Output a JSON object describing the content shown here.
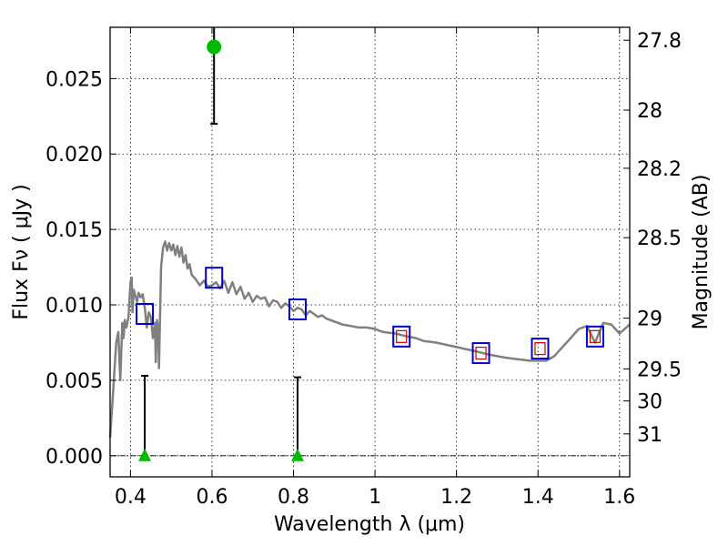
{
  "chart_data": {
    "type": "scatter",
    "xlabel": "Wavelength  λ (μm)",
    "ylabel": "Flux  Fν  ( μJy )",
    "y2label": "Magnitude (AB)",
    "xlim": [
      0.35,
      1.625
    ],
    "ylim": [
      -0.0014,
      0.0284
    ],
    "grid": true,
    "x_ticks": [
      {
        "value": 0.4,
        "label": "0.4"
      },
      {
        "value": 0.6,
        "label": "0.6"
      },
      {
        "value": 0.8,
        "label": "0.8"
      },
      {
        "value": 1.0,
        "label": "1"
      },
      {
        "value": 1.2,
        "label": "1.2"
      },
      {
        "value": 1.4,
        "label": "1.4"
      },
      {
        "value": 1.6,
        "label": "1.6"
      }
    ],
    "y_ticks": [
      {
        "value": 0.0,
        "label": "0.000"
      },
      {
        "value": 0.005,
        "label": "0.005"
      },
      {
        "value": 0.01,
        "label": "0.010"
      },
      {
        "value": 0.015,
        "label": "0.015"
      },
      {
        "value": 0.02,
        "label": "0.020"
      },
      {
        "value": 0.025,
        "label": "0.025"
      }
    ],
    "y2_ticks": [
      {
        "mag": 27.8,
        "label": "27.8"
      },
      {
        "mag": 28.0,
        "label": "28"
      },
      {
        "mag": 28.2,
        "label": "28.2"
      },
      {
        "mag": 28.5,
        "label": "28.5"
      },
      {
        "mag": 29.0,
        "label": "29"
      },
      {
        "mag": 29.5,
        "label": "29.5"
      },
      {
        "mag": 30.0,
        "label": "30"
      },
      {
        "mag": 31.0,
        "label": "31"
      }
    ],
    "series": [
      {
        "kind": "model_spectrum",
        "color": "#808080",
        "x": [
          0.35,
          0.358,
          0.365,
          0.37,
          0.375,
          0.38,
          0.383,
          0.386,
          0.39,
          0.395,
          0.4,
          0.403,
          0.405,
          0.408,
          0.41,
          0.413,
          0.416,
          0.42,
          0.425,
          0.43,
          0.435,
          0.44,
          0.445,
          0.45,
          0.455,
          0.46,
          0.462,
          0.465,
          0.468,
          0.47,
          0.475,
          0.48,
          0.485,
          0.49,
          0.495,
          0.5,
          0.505,
          0.51,
          0.515,
          0.52,
          0.525,
          0.53,
          0.535,
          0.54,
          0.545,
          0.55,
          0.56,
          0.57,
          0.58,
          0.59,
          0.6,
          0.61,
          0.62,
          0.63,
          0.64,
          0.65,
          0.66,
          0.67,
          0.68,
          0.69,
          0.7,
          0.71,
          0.72,
          0.73,
          0.74,
          0.75,
          0.76,
          0.77,
          0.78,
          0.79,
          0.8,
          0.81,
          0.82,
          0.83,
          0.84,
          0.85,
          0.86,
          0.87,
          0.88,
          0.9,
          0.92,
          0.94,
          0.96,
          0.98,
          1.0,
          1.02,
          1.05,
          1.08,
          1.1,
          1.12,
          1.15,
          1.2,
          1.25,
          1.28,
          1.3,
          1.32,
          1.35,
          1.38,
          1.4,
          1.42,
          1.44,
          1.46,
          1.48,
          1.5,
          1.52,
          1.54,
          1.56,
          1.58,
          1.6,
          1.625
        ],
        "y": [
          0.0012,
          0.0045,
          0.0075,
          0.0082,
          0.005,
          0.0088,
          0.0078,
          0.009,
          0.0085,
          0.0092,
          0.0115,
          0.0118,
          0.0095,
          0.011,
          0.0108,
          0.0105,
          0.0102,
          0.0108,
          0.0105,
          0.0107,
          0.0098,
          0.0085,
          0.0095,
          0.0092,
          0.0078,
          0.0088,
          0.0062,
          0.009,
          0.0085,
          0.0058,
          0.0125,
          0.0138,
          0.0142,
          0.0136,
          0.0141,
          0.0136,
          0.014,
          0.0133,
          0.0139,
          0.0132,
          0.0138,
          0.0128,
          0.0133,
          0.0124,
          0.0127,
          0.012,
          0.0117,
          0.0113,
          0.0116,
          0.0112,
          0.0113,
          0.0115,
          0.0111,
          0.0116,
          0.0108,
          0.0115,
          0.0107,
          0.0112,
          0.0104,
          0.0108,
          0.0102,
          0.0106,
          0.0104,
          0.0105,
          0.0099,
          0.0103,
          0.0102,
          0.0098,
          0.0101,
          0.0099,
          0.0096,
          0.0098,
          0.0097,
          0.0093,
          0.0096,
          0.0094,
          0.0092,
          0.0093,
          0.0091,
          0.0089,
          0.0087,
          0.0086,
          0.0085,
          0.0085,
          0.0084,
          0.0082,
          0.0081,
          0.0079,
          0.0078,
          0.0076,
          0.0075,
          0.0072,
          0.0069,
          0.0067,
          0.0066,
          0.0065,
          0.0064,
          0.0063,
          0.0063,
          0.0063,
          0.0066,
          0.0072,
          0.0078,
          0.0084,
          0.0086,
          0.0075,
          0.0088,
          0.0087,
          0.0081,
          0.0087
        ]
      },
      {
        "kind": "model_photometry",
        "marker": "square",
        "color": "#0000cc",
        "x": [
          0.435,
          0.605,
          0.81,
          1.065,
          1.26,
          1.405,
          1.54
        ],
        "y": [
          0.0094,
          0.0118,
          0.0097,
          0.0079,
          0.0068,
          0.0071,
          0.0079
        ]
      },
      {
        "kind": "observed_photometry",
        "marker": "square-small",
        "color": "#cc0000",
        "x": [
          1.065,
          1.26,
          1.405,
          1.54
        ],
        "y": [
          0.0079,
          0.0068,
          0.0071,
          0.0079
        ]
      },
      {
        "kind": "detection",
        "marker": "circle",
        "color": "#00bb00",
        "x": [
          0.605
        ],
        "y": [
          0.0271
        ],
        "yerr_low": [
          0.022
        ],
        "yerr_high": [
          0.0284
        ]
      },
      {
        "kind": "upper_limit",
        "marker": "triangle",
        "color": "#00bb00",
        "x": [
          0.435,
          0.81
        ],
        "y": [
          0.0,
          0.0
        ],
        "yerr_low": [
          0.0,
          0.0
        ],
        "yerr_high": [
          0.0053,
          0.0052
        ]
      }
    ]
  }
}
